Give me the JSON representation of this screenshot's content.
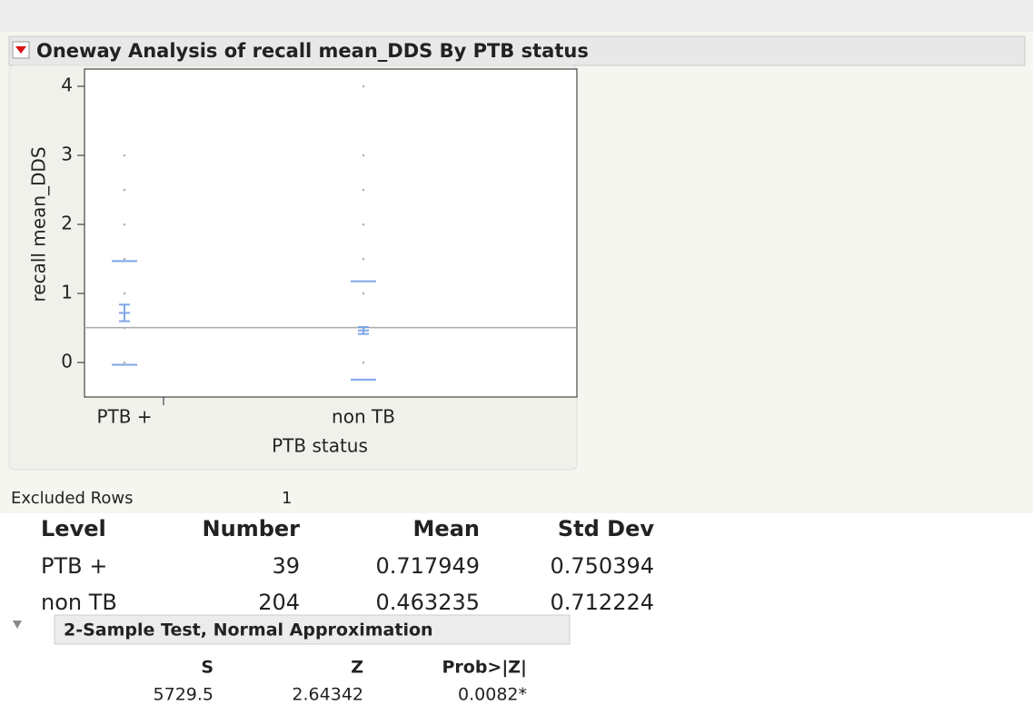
{
  "header": {
    "title": "Oneway Analysis of recall mean_DDS By PTB status"
  },
  "chart_data": {
    "type": "scatter",
    "y_label": "recall mean_DDS",
    "x_label": "PTB status",
    "categories": [
      "PTB +",
      "non TB"
    ],
    "series": [
      {
        "name": "PTB +",
        "color": "#b0b0b0",
        "values": [
          0,
          0.5,
          1,
          1.5,
          2,
          2.5,
          3
        ]
      },
      {
        "name": "non TB",
        "color": "#b0b0b0",
        "values": [
          0,
          0.5,
          1,
          1.5,
          2,
          2.5,
          3,
          4
        ]
      }
    ],
    "ylim": [
      -0.5,
      4.25
    ],
    "yticks": [
      0,
      1,
      2,
      3,
      4
    ]
  },
  "excluded_rows": {
    "label": "Excluded Rows",
    "value": 1
  },
  "table": {
    "columns": [
      "Level",
      "Number",
      "Mean",
      "Std Dev"
    ],
    "rows": [
      [
        "PTB +",
        39,
        0.717949,
        0.750394
      ],
      [
        "non TB",
        204,
        0.463235,
        0.712224
      ]
    ]
  },
  "test": {
    "title": "2-Sample Test, Normal Approximation",
    "columns": [
      "S",
      "Z",
      "Prob>|Z|"
    ],
    "row": [
      5729.5,
      2.64342,
      "0.0082*"
    ]
  }
}
